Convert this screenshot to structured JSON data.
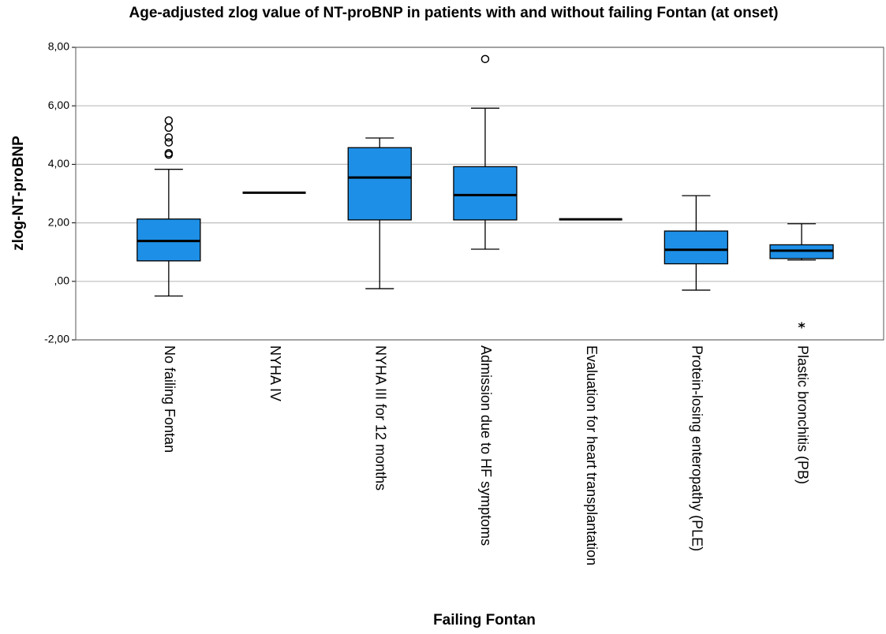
{
  "chart_data": {
    "type": "boxplot",
    "title": "Age-adjusted zlog value of NT-proBNP in patients with and without failing Fontan (at onset)",
    "x_label": "Failing Fontan",
    "y_label": "zlog-NT-proBNP",
    "color": "#1e8fe6",
    "grid": true,
    "ylim": [
      -2,
      8
    ],
    "yticks": [
      {
        "value": -2,
        "label": "-2,00"
      },
      {
        "value": 0,
        "label": ",00"
      },
      {
        "value": 2,
        "label": "2,00"
      },
      {
        "value": 4,
        "label": "4,00"
      },
      {
        "value": 6,
        "label": "6,00"
      },
      {
        "value": 8,
        "label": "8,00"
      }
    ],
    "categories": [
      "No failing Fontan",
      "NYHA IV",
      "NYHA III for 12 months",
      "Admission due to HF symptoms",
      "Evaluation for heart transplantation",
      "Protein-losing enteropathy (PLE)",
      "Plastic bronchitis (PB)"
    ],
    "boxes": [
      {
        "min": -0.5,
        "q1": 0.7,
        "median": 1.38,
        "q3": 2.13,
        "max": 3.83,
        "outliers": [
          4.33,
          4.38,
          4.75,
          4.92,
          5.25,
          5.5
        ],
        "extremes": []
      },
      {
        "min": 3.03,
        "q1": 3.03,
        "median": 3.03,
        "q3": 3.03,
        "max": 3.03,
        "outliers": [],
        "extremes": []
      },
      {
        "min": -0.25,
        "q1": 2.1,
        "median": 3.55,
        "q3": 4.57,
        "max": 4.9,
        "outliers": [],
        "extremes": []
      },
      {
        "min": 1.1,
        "q1": 2.1,
        "median": 2.95,
        "q3": 3.92,
        "max": 5.92,
        "outliers": [
          7.6
        ],
        "extremes": []
      },
      {
        "min": 2.12,
        "q1": 2.12,
        "median": 2.12,
        "q3": 2.12,
        "max": 2.12,
        "outliers": [],
        "extremes": []
      },
      {
        "min": -0.3,
        "q1": 0.6,
        "median": 1.08,
        "q3": 1.72,
        "max": 2.93,
        "outliers": [],
        "extremes": []
      },
      {
        "min": 0.73,
        "q1": 0.78,
        "median": 1.05,
        "q3": 1.25,
        "max": 1.97,
        "outliers": [],
        "extremes": [
          -1.5
        ]
      }
    ]
  }
}
